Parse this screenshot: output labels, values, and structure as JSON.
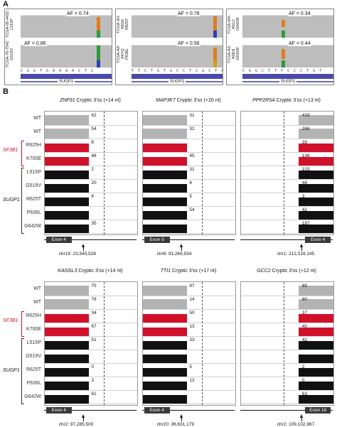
{
  "panel_a": {
    "letter": "A",
    "tracks": [
      {
        "sample": "TCGA-05-4432",
        "mutation": "L515P",
        "af": "AF = 0.74",
        "af_value": 0.74,
        "marker_colors": [
          "#e07b1f",
          "#2e9a3a"
        ]
      },
      {
        "sample": "TCGA-76-7542",
        "mutation": "G519V",
        "af": "AF = 0.86",
        "af_value": 0.86,
        "marker_colors": [
          "#2e9a3a",
          "#2b3fb3"
        ]
      },
      {
        "sample": "TCGA-2H-A9GK",
        "mutation": "R625T",
        "af": "AF = 0.78",
        "af_value": 0.78,
        "marker_colors": [
          "#e07b1f",
          "#2b3fb3"
        ]
      },
      {
        "sample": "TCGA-A9-A4YQ",
        "mutation": "P636L",
        "af": "AF = 0.56",
        "af_value": 0.56,
        "marker_colors": [
          "#e07b1f",
          "#d4a017"
        ]
      },
      {
        "sample": "TCGA-MX-A5UJ",
        "mutation": "G642W",
        "af": "AF = 0.34",
        "af_value": 0.34,
        "marker_colors": [
          "#e07b1f",
          "#2e9a3a"
        ]
      },
      {
        "sample": "TCGA-A2-A0EN",
        "mutation": "G642W",
        "af": "AF = 0.44",
        "af_value": 0.44,
        "marker_colors": [
          "#e07b1f",
          "#2e9a3a"
        ]
      }
    ],
    "seq1": "C G G T G A A A A C T C",
    "seq2": "T T C T G T G C C T C G C T A T A",
    "seq3": "C G G C T T T C C C T G T",
    "gene": "SUGP1"
  },
  "panel_b": {
    "letter": "B",
    "row_labels": [
      "WT",
      "WT",
      "R625H",
      "K700E",
      "L515P",
      "G519V",
      "R625T",
      "P636L",
      "G642W"
    ],
    "group_sf3b1": "SF3B1",
    "group_sugp1": "SUGP1",
    "colors": {
      "wt": "#b3b3b3",
      "sf3b1": "#d0112b",
      "sugp1": "#111111"
    },
    "panels": [
      {
        "gene": "ZNF91",
        "title_rest": " Cryptic 3'ss (+14 nt)",
        "values": [
          "62",
          "54",
          "8",
          "48",
          "2",
          "20",
          "6",
          "35"
        ],
        "exon": "Exon 4",
        "exon_side": "left",
        "coord": "chr19: 23,545,528"
      },
      {
        "gene": "MAP3K7",
        "title_rest": " Cryptic 3'ss (+20 nt)",
        "values": [
          "31",
          "32",
          "45",
          "31",
          "6",
          "5",
          "54"
        ],
        "exon": "Exon 5",
        "exon_side": "left",
        "coord": "chr6: 91,269,934"
      },
      {
        "gene": "PPP2R5A",
        "title_rest": " Cryptic 3'ss (+13 nt)",
        "values": [
          "419",
          "268",
          "39",
          "136",
          "103",
          "44",
          "3",
          "42",
          "187"
        ],
        "exon": "Exon 4",
        "exon_side": "right",
        "coord": "chr1: 212,519,145"
      },
      {
        "gene": "KANSL3",
        "title_rest": " Cryptic 3'ss (+14 nt)",
        "values": [
          "75",
          "78",
          "34",
          "67",
          "51",
          "0",
          "3",
          "61"
        ],
        "exon": "Exon 4",
        "exon_side": "left",
        "coord": "chr2: 97,285,500"
      },
      {
        "gene": "TTI1",
        "title_rest": " Cryptic 3'ss (+17 nt)",
        "values": [
          "97",
          "14",
          "50",
          "13",
          "33",
          "5",
          "12"
        ],
        "exon": "Exon 4",
        "exon_side": "left",
        "coord": "chr20: 36,631,179"
      },
      {
        "gene": "GCC2",
        "title_rest": " Cryptic 3'ss (+12 nt)",
        "values": [
          "85",
          "80",
          "37",
          "40",
          "42",
          "2",
          "0",
          "63"
        ],
        "exon": "Exon 16",
        "exon_side": "right",
        "coord": "chr2: 109,102,967"
      }
    ]
  }
}
